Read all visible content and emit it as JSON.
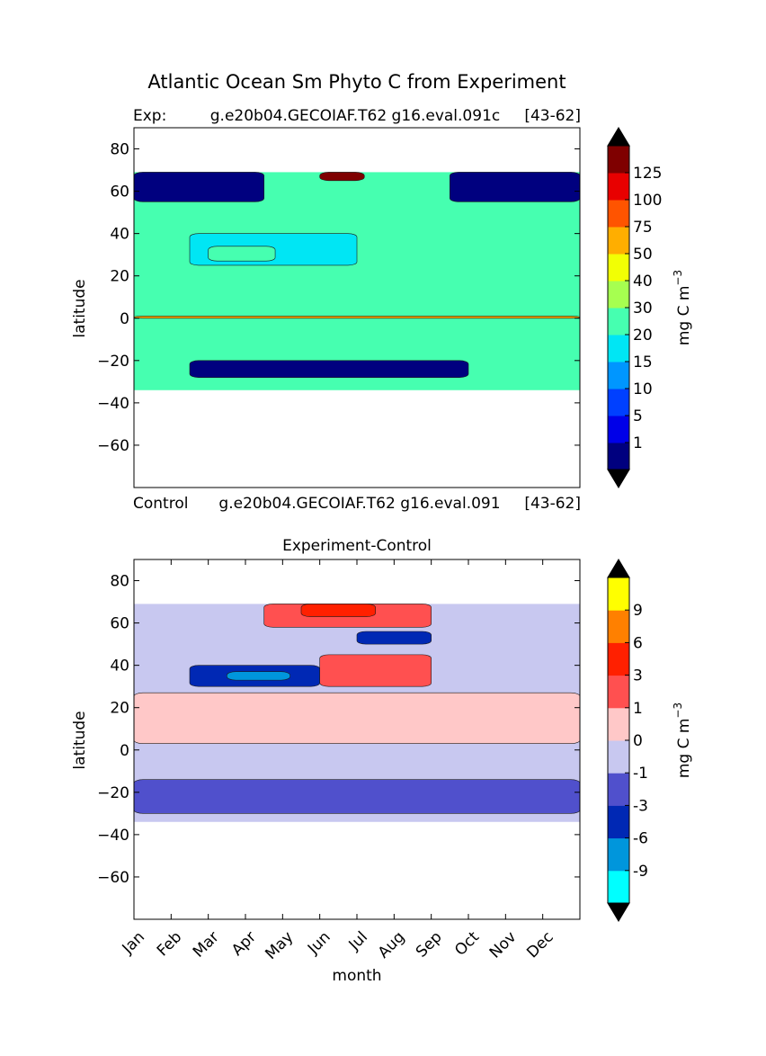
{
  "figure": {
    "suptitle": "Atlantic Ocean Sm Phyto C from Experiment"
  },
  "chart_data": [
    {
      "type": "heatmap",
      "title_left": "Exp:",
      "title_center": "g.e20b04.GECOIAF.T62 g16.eval.091c",
      "title_right": "[43-62]",
      "xlabel": "",
      "ylabel": "latitude",
      "ylim": [
        -80,
        90
      ],
      "y_ticks": [
        80,
        60,
        40,
        20,
        0,
        -20,
        -40,
        -60
      ],
      "x_ticks": [],
      "data_lat_range": [
        -34,
        69
      ],
      "colorbar": {
        "label": "mg C m",
        "label_sup": "−3",
        "levels": [
          "1",
          "5",
          "10",
          "15",
          "20",
          "30",
          "40",
          "50",
          "75",
          "100",
          "125"
        ],
        "colors": [
          "#00007f",
          "#0000e8",
          "#0040ff",
          "#0096ff",
          "#00e6f4",
          "#46ffb0",
          "#a6ff50",
          "#f2ff04",
          "#ffae00",
          "#ff5400",
          "#e80000",
          "#7f0000"
        ],
        "extend_top_color": "#000000",
        "extend_bottom_color": "#000000"
      },
      "regions": [
        {
          "desc": "base",
          "level": 5,
          "months": [
            0,
            12
          ],
          "lat": [
            -34,
            69
          ]
        },
        {
          "desc": "high-lat winter",
          "level": 0,
          "months": [
            0,
            3.5
          ],
          "lat": [
            55,
            69
          ]
        },
        {
          "desc": "high-lat late",
          "level": 0,
          "months": [
            8.5,
            12
          ],
          "lat": [
            55,
            69
          ]
        },
        {
          "desc": "equator band",
          "level": 8,
          "months": [
            0,
            12
          ],
          "lat": [
            0,
            1
          ]
        },
        {
          "desc": "subtropical band",
          "level": 4,
          "months": [
            1.5,
            6
          ],
          "lat": [
            25,
            40
          ]
        },
        {
          "desc": "subtropical peak",
          "level": 5,
          "months": [
            2,
            3.8
          ],
          "lat": [
            27,
            34
          ]
        },
        {
          "desc": "bloom",
          "level": 11,
          "months": [
            5,
            6.2
          ],
          "lat": [
            65,
            69
          ]
        },
        {
          "desc": "south",
          "level": 0,
          "months": [
            1.5,
            9
          ],
          "lat": [
            -28,
            -20
          ]
        }
      ]
    },
    {
      "type": "heatmap",
      "title_left": "Control",
      "title_center": "g.e20b04.GECOIAF.T62 g16.eval.091",
      "title_right": "[43-62]",
      "title": "Experiment-Control",
      "xlabel": "month",
      "ylabel": "latitude",
      "ylim": [
        -80,
        90
      ],
      "y_ticks": [
        80,
        60,
        40,
        20,
        0,
        -20,
        -40,
        -60
      ],
      "x_ticks": [
        "Jan",
        "Feb",
        "Mar",
        "Apr",
        "May",
        "Jun",
        "Jul",
        "Aug",
        "Sep",
        "Oct",
        "Nov",
        "Dec"
      ],
      "data_lat_range": [
        -34,
        69
      ],
      "colorbar": {
        "label": "mg C m",
        "label_sup": "−3",
        "levels": [
          "-9",
          "-6",
          "-3",
          "-1",
          "0",
          "1",
          "3",
          "6",
          "9"
        ],
        "colors": [
          "#00ffff",
          "#0096dc",
          "#0028b4",
          "#5050cc",
          "#c8c8f0",
          "#ffc8c8",
          "#ff5050",
          "#ff2000",
          "#ff8000",
          "#ffff00"
        ],
        "extend_top_color": "#000000",
        "extend_bottom_color": "#000000"
      },
      "regions": [
        {
          "desc": "base",
          "level": 4,
          "months": [
            0,
            12
          ],
          "lat": [
            -34,
            69
          ]
        },
        {
          "desc": "pos band",
          "level": 5,
          "months": [
            0,
            12
          ],
          "lat": [
            3,
            27
          ]
        },
        {
          "desc": "south neg",
          "level": 3,
          "months": [
            0,
            12
          ],
          "lat": [
            -30,
            -14
          ]
        },
        {
          "desc": "subtropical neg",
          "level": 2,
          "months": [
            1.5,
            5
          ],
          "lat": [
            30,
            40
          ]
        },
        {
          "desc": "subtropical core",
          "level": 1,
          "months": [
            2.5,
            4.2
          ],
          "lat": [
            33,
            37
          ]
        },
        {
          "desc": "subpolar pos",
          "level": 6,
          "months": [
            3.5,
            8
          ],
          "lat": [
            58,
            69
          ]
        },
        {
          "desc": "subpolar strong",
          "level": 7,
          "months": [
            4.5,
            6.5
          ],
          "lat": [
            63,
            69
          ]
        },
        {
          "desc": "mid pos",
          "level": 6,
          "months": [
            5,
            8
          ],
          "lat": [
            30,
            45
          ]
        },
        {
          "desc": "mid neg",
          "level": 2,
          "months": [
            6,
            8
          ],
          "lat": [
            50,
            56
          ]
        }
      ]
    }
  ]
}
